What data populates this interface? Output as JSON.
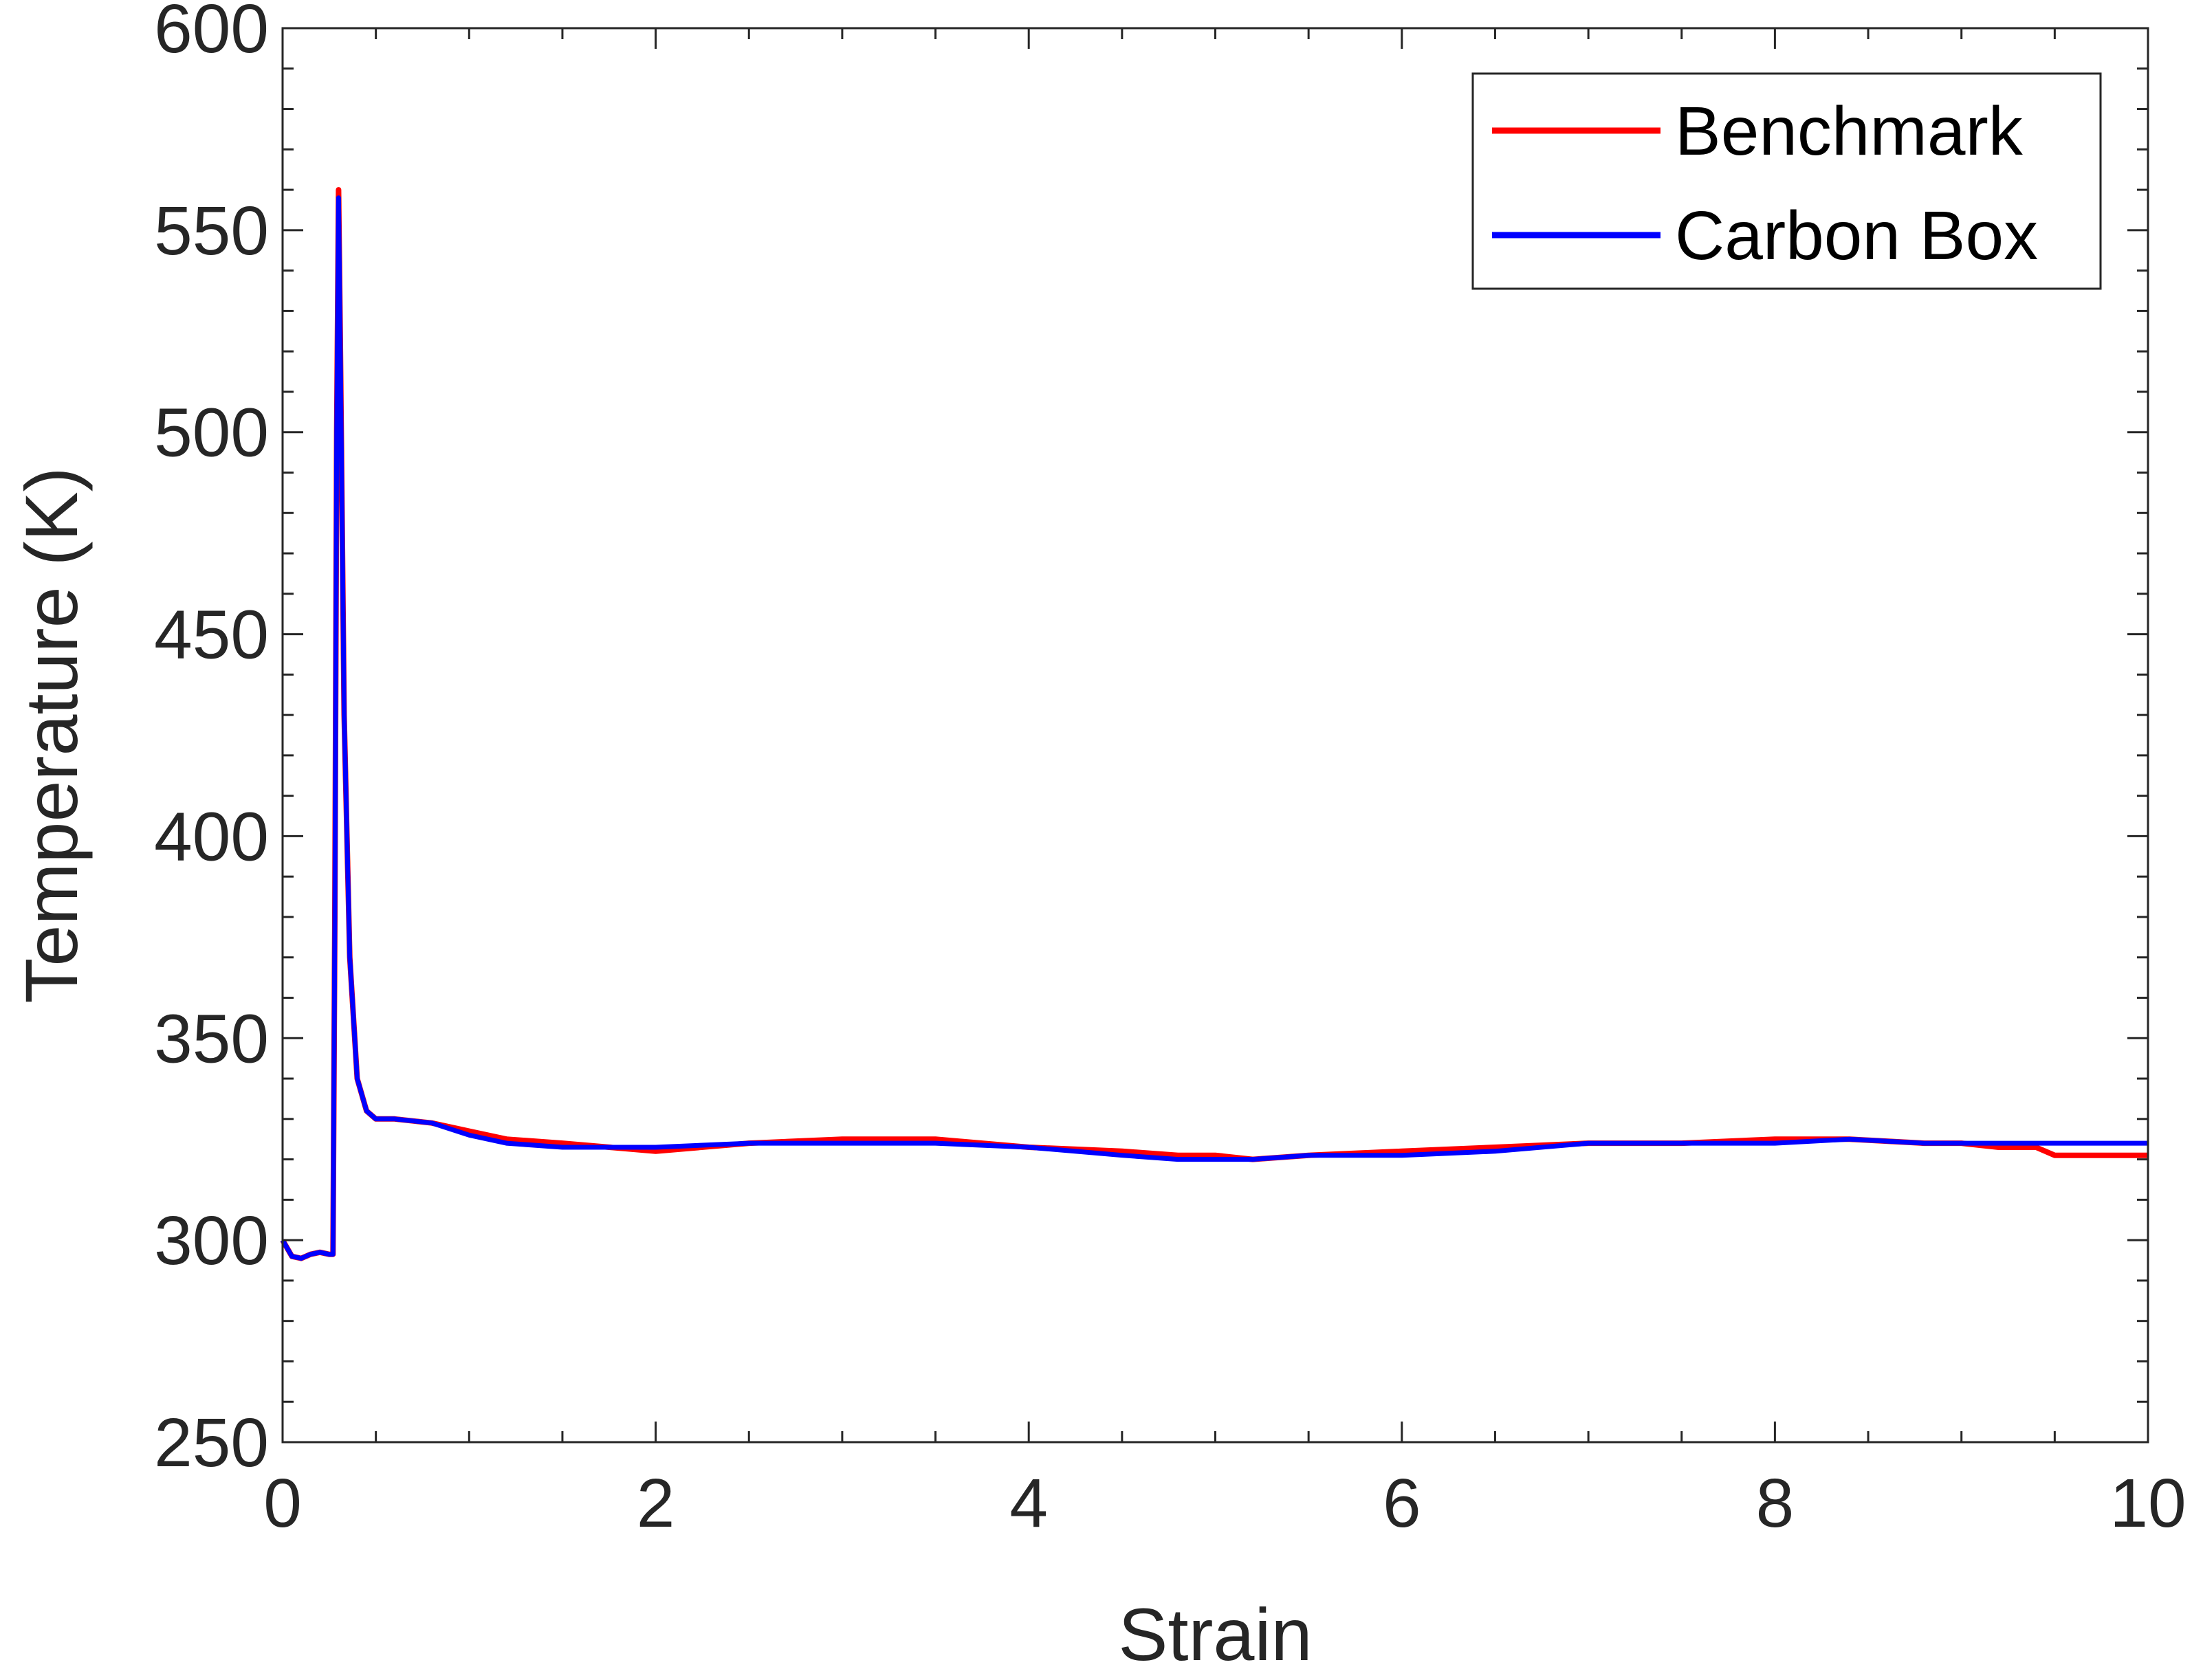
{
  "chart_data": {
    "type": "line",
    "title": "",
    "xlabel": "Strain",
    "ylabel": "Temperature (K)",
    "xlim": [
      0,
      10
    ],
    "ylim": [
      250,
      600
    ],
    "x_ticks": [
      "0",
      "2",
      "4",
      "6",
      "8",
      "10"
    ],
    "y_ticks": [
      "250",
      "300",
      "350",
      "400",
      "450",
      "500",
      "550",
      "600"
    ],
    "grid": false,
    "box": true,
    "legend_position": "top-right",
    "series": [
      {
        "name": "Benchmark",
        "color": "#ff0000",
        "x": [
          0,
          0.05,
          0.1,
          0.15,
          0.2,
          0.25,
          0.27,
          0.28,
          0.29,
          0.3,
          0.31,
          0.33,
          0.36,
          0.4,
          0.45,
          0.5,
          0.6,
          0.8,
          1.0,
          1.2,
          1.5,
          2.0,
          2.5,
          3.0,
          3.5,
          4.0,
          4.5,
          4.8,
          5.0,
          5.2,
          5.5,
          6.0,
          6.5,
          7.0,
          7.5,
          8.0,
          8.4,
          8.8,
          9.0,
          9.2,
          9.4,
          9.5,
          9.7,
          10.0
        ],
        "y": [
          300,
          296,
          295.5,
          296.5,
          297,
          296.5,
          296.5,
          380,
          500,
          560,
          520,
          430,
          370,
          340,
          332,
          330,
          330,
          329,
          327,
          325,
          324,
          322,
          324,
          325,
          325,
          323,
          322,
          321,
          321,
          320,
          321,
          322,
          323,
          324,
          324,
          325,
          325,
          324,
          324,
          323,
          323,
          321,
          321,
          321
        ]
      },
      {
        "name": "Carbon Box",
        "color": "#0000ff",
        "x": [
          0,
          0.05,
          0.1,
          0.15,
          0.2,
          0.25,
          0.27,
          0.28,
          0.29,
          0.3,
          0.31,
          0.33,
          0.36,
          0.4,
          0.45,
          0.5,
          0.6,
          0.8,
          1.0,
          1.2,
          1.5,
          2.0,
          2.5,
          3.0,
          3.5,
          4.0,
          4.5,
          4.8,
          5.0,
          5.2,
          5.5,
          6.0,
          6.5,
          7.0,
          7.5,
          8.0,
          8.4,
          8.8,
          9.0,
          9.2,
          9.4,
          9.5,
          9.7,
          10.0
        ],
        "y": [
          300,
          296,
          295.5,
          296.5,
          297,
          296.5,
          296.5,
          380,
          500,
          558,
          518,
          430,
          370,
          340,
          332,
          330,
          330,
          329,
          326,
          324,
          323,
          323,
          324,
          324,
          324,
          323,
          321,
          320,
          320,
          320,
          321,
          321,
          322,
          324,
          324,
          324,
          325,
          324,
          324,
          324,
          324,
          324,
          324,
          324
        ]
      }
    ]
  }
}
